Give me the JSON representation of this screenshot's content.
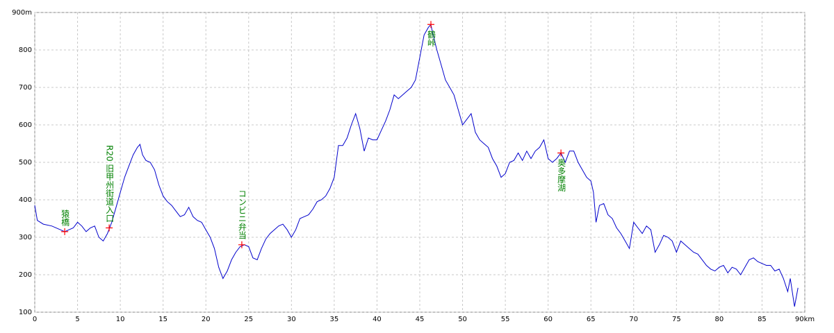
{
  "chart_data": {
    "type": "line",
    "x": [
      0,
      0.3,
      1,
      2,
      3,
      3.5,
      4,
      4.5,
      5,
      5.5,
      6,
      6.5,
      7,
      7.5,
      8,
      8.5,
      9,
      9.5,
      10,
      10.5,
      11,
      11.5,
      12,
      12.3,
      12.6,
      13,
      13.5,
      14,
      14.5,
      15,
      15.5,
      16,
      16.5,
      17,
      17.5,
      18,
      18.5,
      19,
      19.5,
      20,
      20.5,
      21,
      21.5,
      22,
      22.5,
      23,
      23.5,
      24,
      24.5,
      25,
      25.5,
      26,
      26.5,
      27,
      27.5,
      28,
      28.5,
      29,
      29.5,
      30,
      30.5,
      31,
      31.5,
      32,
      32.5,
      33,
      33.5,
      34,
      34.5,
      35,
      35.5,
      36,
      36.5,
      37,
      37.5,
      38,
      38.5,
      39,
      39.5,
      40,
      40.5,
      41,
      41.5,
      42,
      42.5,
      43,
      43.5,
      44,
      44.5,
      45,
      45.5,
      46,
      46.3,
      46.5,
      47,
      47.5,
      48,
      48.5,
      49,
      49.5,
      50,
      50.5,
      51,
      51.5,
      52,
      52.5,
      53,
      53.5,
      54,
      54.5,
      55,
      55.5,
      56,
      56.5,
      57,
      57.5,
      58,
      58.5,
      59,
      59.5,
      60,
      60.5,
      61,
      61.5,
      62,
      62.5,
      63,
      63.5,
      64,
      64.5,
      65,
      65.3,
      65.6,
      66,
      66.5,
      67,
      67.5,
      68,
      68.5,
      69,
      69.5,
      70,
      70.5,
      71,
      71.5,
      72,
      72.5,
      73,
      73.5,
      74,
      74.5,
      75,
      75.5,
      76,
      76.5,
      77,
      77.5,
      78,
      78.5,
      79,
      79.5,
      80,
      80.5,
      81,
      81.5,
      82,
      82.5,
      83,
      83.5,
      84,
      84.5,
      85,
      85.5,
      86,
      86.5,
      87,
      87.5,
      88,
      88.3,
      88.8,
      89.2
    ],
    "series": [
      {
        "color": "#0000cc",
        "values": [
          385,
          345,
          335,
          330,
          320,
          315,
          320,
          325,
          340,
          330,
          315,
          325,
          330,
          300,
          290,
          310,
          340,
          380,
          420,
          460,
          490,
          520,
          540,
          548,
          520,
          505,
          500,
          480,
          440,
          410,
          395,
          385,
          370,
          355,
          360,
          380,
          355,
          345,
          340,
          320,
          300,
          270,
          220,
          190,
          210,
          240,
          260,
          275,
          280,
          275,
          245,
          240,
          270,
          295,
          310,
          320,
          330,
          335,
          320,
          300,
          320,
          350,
          355,
          360,
          375,
          395,
          400,
          410,
          430,
          460,
          545,
          545,
          565,
          600,
          630,
          590,
          530,
          565,
          560,
          560,
          585,
          610,
          640,
          680,
          670,
          680,
          690,
          700,
          720,
          780,
          840,
          860,
          868,
          845,
          800,
          760,
          720,
          700,
          680,
          640,
          600,
          615,
          630,
          580,
          560,
          550,
          540,
          510,
          490,
          460,
          470,
          500,
          505,
          525,
          505,
          530,
          510,
          530,
          540,
          560,
          510,
          500,
          510,
          525,
          500,
          530,
          530,
          500,
          480,
          460,
          450,
          420,
          340,
          385,
          390,
          360,
          350,
          325,
          310,
          290,
          270,
          340,
          325,
          310,
          330,
          320,
          260,
          280,
          305,
          300,
          290,
          260,
          290,
          280,
          270,
          260,
          255,
          240,
          225,
          215,
          210,
          220,
          225,
          205,
          220,
          215,
          200,
          220,
          240,
          245,
          235,
          230,
          225,
          225,
          210,
          215,
          190,
          155,
          190,
          115,
          165
        ]
      }
    ],
    "markers": [
      {
        "label": "猿橋",
        "x": 3.5,
        "y": 315
      },
      {
        "label": "R20 旧甲州街道入口",
        "x": 8.7,
        "y": 325
      },
      {
        "label": "コンビニ弁当",
        "x": 24.2,
        "y": 280
      },
      {
        "label": "鶴峠",
        "x": 46.3,
        "y": 868
      },
      {
        "label": "奥多摩湖",
        "x": 61.5,
        "y": 525
      }
    ],
    "marker_color": "#ff0000",
    "label_color": "#008000",
    "xlim": [
      0,
      90
    ],
    "xticks": [
      0,
      5,
      10,
      15,
      20,
      25,
      30,
      35,
      40,
      45,
      50,
      55,
      60,
      65,
      70,
      75,
      80,
      85,
      {
        "value": 90,
        "label": "90km"
      }
    ],
    "ylim": [
      100,
      900
    ],
    "yticks": [
      100,
      200,
      300,
      400,
      500,
      600,
      700,
      800,
      {
        "value": 900,
        "label": "900m"
      }
    ],
    "grid": true
  }
}
